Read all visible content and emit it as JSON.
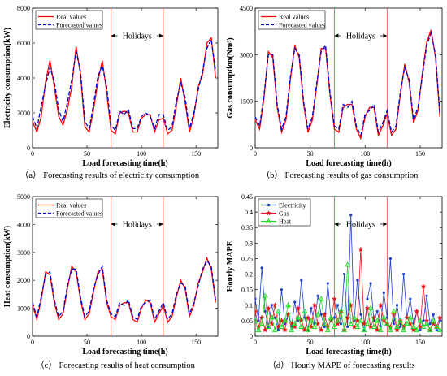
{
  "colors": {
    "real": "#ff0000",
    "forecast": "#0000cc",
    "electricity": "#1f3fd0",
    "gas": "#e8141e",
    "heat": "#22dd22",
    "holiday_line": "#e0584a"
  },
  "chart_data": [
    {
      "id": "a",
      "type": "line",
      "caption": "（a） Forecasting results of electricity consumption",
      "xlabel": "Load forecasting time(h)",
      "ylabel": "Electricity consumption(kW)",
      "xlim": [
        0,
        170
      ],
      "ylim": [
        0,
        8000
      ],
      "xticks": [
        0,
        50,
        100,
        150
      ],
      "yticks": [
        0,
        2000,
        4000,
        6000,
        8000
      ],
      "holiday_range": [
        72,
        120
      ],
      "holiday_label": "Holidays",
      "legend_position": "top-left",
      "series": [
        {
          "name": "Real values",
          "style": "solid",
          "x": [
            0,
            4,
            8,
            12,
            16,
            20,
            24,
            28,
            32,
            36,
            40,
            44,
            48,
            52,
            56,
            60,
            64,
            68,
            72,
            76,
            80,
            84,
            88,
            92,
            96,
            100,
            104,
            108,
            112,
            116,
            120,
            124,
            128,
            132,
            136,
            140,
            144,
            148,
            152,
            156,
            160,
            164,
            168
          ],
          "y": [
            1500,
            900,
            1800,
            3800,
            5000,
            3500,
            1800,
            1300,
            2200,
            3500,
            5800,
            4200,
            1200,
            900,
            2200,
            3800,
            5000,
            3200,
            1000,
            800,
            2000,
            2100,
            2000,
            900,
            900,
            1700,
            1900,
            1900,
            900,
            1600,
            1700,
            800,
            1000,
            2400,
            4000,
            2600,
            900,
            1800,
            3500,
            4200,
            6000,
            6300,
            4000
          ]
        },
        {
          "name": "Forecasted values",
          "style": "dashed",
          "x": [
            0,
            4,
            8,
            12,
            16,
            20,
            24,
            28,
            32,
            36,
            40,
            44,
            48,
            52,
            56,
            60,
            64,
            68,
            72,
            76,
            80,
            84,
            88,
            92,
            96,
            100,
            104,
            108,
            112,
            116,
            120,
            124,
            128,
            132,
            136,
            140,
            144,
            148,
            152,
            156,
            160,
            164,
            168
          ],
          "y": [
            1800,
            1100,
            2400,
            3600,
            4600,
            3800,
            2200,
            1500,
            2600,
            3900,
            5500,
            4400,
            1500,
            1100,
            2500,
            4100,
            4700,
            3500,
            1300,
            1000,
            2100,
            1900,
            2200,
            1100,
            1100,
            1800,
            2000,
            1800,
            1100,
            1900,
            1900,
            1000,
            1200,
            2700,
            3700,
            2900,
            1100,
            2000,
            3300,
            4400,
            5700,
            6200,
            4400
          ]
        }
      ]
    },
    {
      "id": "b",
      "type": "line",
      "caption": "（b） Forecasting results of gas consumption",
      "xlabel": "Load forecasting time(h)",
      "ylabel": "Gas consumption(Nm³)",
      "xlim": [
        0,
        170
      ],
      "ylim": [
        0,
        4500
      ],
      "xticks": [
        0,
        50,
        100,
        150
      ],
      "yticks": [
        0,
        1500,
        3000,
        4500
      ],
      "holiday_range": [
        72,
        120
      ],
      "holiday_label": "Holidays",
      "legend_position": "top-left",
      "series": [
        {
          "name": "Real values",
          "style": "solid",
          "x": [
            0,
            4,
            8,
            12,
            16,
            20,
            24,
            28,
            32,
            36,
            40,
            44,
            48,
            52,
            56,
            60,
            64,
            68,
            72,
            76,
            80,
            84,
            88,
            92,
            96,
            100,
            104,
            108,
            112,
            116,
            120,
            124,
            128,
            132,
            136,
            140,
            144,
            148,
            152,
            156,
            160,
            164,
            168
          ],
          "y": [
            900,
            600,
            1600,
            3100,
            2900,
            1300,
            500,
            900,
            2200,
            3300,
            2900,
            1400,
            500,
            900,
            2000,
            3200,
            3200,
            1700,
            600,
            500,
            1300,
            1400,
            1400,
            600,
            300,
            1000,
            1300,
            1300,
            400,
            700,
            1100,
            400,
            600,
            1700,
            2700,
            2100,
            800,
            1200,
            2400,
            3400,
            3800,
            2900,
            1000
          ]
        },
        {
          "name": "Forecasted values",
          "style": "dashed",
          "x": [
            0,
            4,
            8,
            12,
            16,
            20,
            24,
            28,
            32,
            36,
            40,
            44,
            48,
            52,
            56,
            60,
            64,
            68,
            72,
            76,
            80,
            84,
            88,
            92,
            96,
            100,
            104,
            108,
            112,
            116,
            120,
            124,
            128,
            132,
            136,
            140,
            144,
            148,
            152,
            156,
            160,
            164,
            168
          ],
          "y": [
            1000,
            700,
            1700,
            3000,
            3000,
            1400,
            600,
            1000,
            2300,
            3200,
            3000,
            1500,
            600,
            1000,
            2100,
            3100,
            3300,
            1800,
            700,
            600,
            1400,
            1300,
            1500,
            700,
            400,
            1100,
            1200,
            1400,
            500,
            800,
            1200,
            500,
            700,
            1800,
            2600,
            2200,
            900,
            1300,
            2300,
            3300,
            3700,
            3000,
            1100
          ]
        }
      ]
    },
    {
      "id": "c",
      "type": "line",
      "caption": "（c） Forecasting results of heat consumption",
      "xlabel": "Load forecasting time(h)",
      "ylabel": "Heat consumption(kW)",
      "xlim": [
        0,
        170
      ],
      "ylim": [
        0,
        5000
      ],
      "xticks": [
        0,
        50,
        100,
        150
      ],
      "yticks": [
        0,
        1000,
        2000,
        3000,
        4000,
        5000
      ],
      "holiday_range": [
        72,
        120
      ],
      "holiday_label": "Holidays",
      "legend_position": "top-left",
      "series": [
        {
          "name": "Real values",
          "style": "solid",
          "x": [
            0,
            4,
            8,
            12,
            16,
            20,
            24,
            28,
            32,
            36,
            40,
            44,
            48,
            52,
            56,
            60,
            64,
            68,
            72,
            76,
            80,
            84,
            88,
            92,
            96,
            100,
            104,
            108,
            112,
            116,
            120,
            124,
            128,
            132,
            136,
            140,
            144,
            148,
            152,
            156,
            160,
            164,
            168
          ],
          "y": [
            1100,
            600,
            1300,
            2300,
            2200,
            1200,
            600,
            800,
            1700,
            2500,
            2300,
            1300,
            600,
            800,
            1600,
            2300,
            2400,
            1200,
            700,
            600,
            1100,
            1200,
            1200,
            600,
            500,
            1000,
            1300,
            1200,
            500,
            800,
            1100,
            500,
            700,
            1400,
            2000,
            1700,
            700,
            1100,
            1900,
            2300,
            2800,
            2400,
            1200
          ]
        },
        {
          "name": "Forecasted values",
          "style": "dashed",
          "x": [
            0,
            4,
            8,
            12,
            16,
            20,
            24,
            28,
            32,
            36,
            40,
            44,
            48,
            52,
            56,
            60,
            64,
            68,
            72,
            76,
            80,
            84,
            88,
            92,
            96,
            100,
            104,
            108,
            112,
            116,
            120,
            124,
            128,
            132,
            136,
            140,
            144,
            148,
            152,
            156,
            160,
            164,
            168
          ],
          "y": [
            1200,
            700,
            1400,
            2200,
            2300,
            1300,
            700,
            900,
            1800,
            2400,
            2400,
            1400,
            700,
            900,
            1700,
            2200,
            2500,
            1300,
            800,
            700,
            1200,
            1100,
            1300,
            700,
            600,
            1100,
            1200,
            1300,
            600,
            900,
            1200,
            600,
            800,
            1500,
            1900,
            1800,
            800,
            1200,
            1800,
            2400,
            2700,
            2500,
            1300
          ]
        }
      ]
    },
    {
      "id": "d",
      "type": "line",
      "caption": "（d） Hourly MAPE of forecasting results",
      "xlabel": "Load forecasting time(h)",
      "ylabel": "Hourly MAPE",
      "xlim": [
        0,
        170
      ],
      "ylim": [
        0,
        0.45
      ],
      "xticks": [
        0,
        50,
        100,
        150
      ],
      "yticks": [
        0,
        0.05,
        0.1,
        0.15,
        0.2,
        0.25,
        0.3,
        0.35,
        0.4,
        0.45
      ],
      "ytick_labels": [
        "0",
        "0.05",
        "0.1",
        "0.15",
        "0.2",
        "0.25",
        "0.3",
        "0.35",
        "0.4",
        "0.45"
      ],
      "holiday_range": [
        72,
        120
      ],
      "holiday_label": "Holidays",
      "legend_position": "top-left",
      "markers": true,
      "series": [
        {
          "name": "Electricity",
          "marker": "dot",
          "x": [
            0,
            3,
            6,
            9,
            12,
            15,
            18,
            21,
            24,
            27,
            30,
            33,
            36,
            39,
            42,
            45,
            48,
            51,
            54,
            57,
            60,
            63,
            66,
            69,
            72,
            75,
            78,
            81,
            84,
            87,
            90,
            93,
            96,
            99,
            102,
            105,
            108,
            111,
            114,
            117,
            120,
            123,
            126,
            129,
            132,
            135,
            138,
            141,
            144,
            147,
            150,
            153,
            156,
            159,
            162,
            165,
            168
          ],
          "y": [
            0.12,
            0.05,
            0.22,
            0.08,
            0.03,
            0.1,
            0.06,
            0.02,
            0.15,
            0.04,
            0.07,
            0.03,
            0.11,
            0.05,
            0.18,
            0.06,
            0.02,
            0.09,
            0.04,
            0.13,
            0.07,
            0.03,
            0.17,
            0.05,
            0.06,
            0.1,
            0.04,
            0.2,
            0.03,
            0.39,
            0.05,
            0.18,
            0.07,
            0.02,
            0.12,
            0.17,
            0.05,
            0.08,
            0.03,
            0.14,
            0.06,
            0.25,
            0.04,
            0.1,
            0.03,
            0.2,
            0.06,
            0.12,
            0.04,
            0.08,
            0.02,
            0.05,
            0.13,
            0.04,
            0.07,
            0.02,
            0.05
          ]
        },
        {
          "name": "Gas",
          "marker": "star",
          "x": [
            0,
            3,
            6,
            9,
            12,
            15,
            18,
            21,
            24,
            27,
            30,
            33,
            36,
            39,
            42,
            45,
            48,
            51,
            54,
            57,
            60,
            63,
            66,
            69,
            72,
            75,
            78,
            81,
            84,
            87,
            90,
            93,
            96,
            99,
            102,
            105,
            108,
            111,
            114,
            117,
            120,
            123,
            126,
            129,
            132,
            135,
            138,
            141,
            144,
            147,
            150,
            153,
            156,
            159,
            162,
            165,
            168
          ],
          "y": [
            0.08,
            0.03,
            0.06,
            0.02,
            0.09,
            0.04,
            0.1,
            0.03,
            0.05,
            0.02,
            0.07,
            0.04,
            0.03,
            0.09,
            0.05,
            0.02,
            0.06,
            0.03,
            0.1,
            0.04,
            0.02,
            0.07,
            0.03,
            0.05,
            0.12,
            0.04,
            0.08,
            0.02,
            0.06,
            0.1,
            0.03,
            0.05,
            0.28,
            0.04,
            0.09,
            0.03,
            0.06,
            0.02,
            0.1,
            0.05,
            0.04,
            0.03,
            0.07,
            0.02,
            0.05,
            0.03,
            0.06,
            0.04,
            0.02,
            0.08,
            0.03,
            0.16,
            0.05,
            0.02,
            0.04,
            0.03,
            0.06
          ]
        },
        {
          "name": "Heat",
          "marker": "triangle",
          "x": [
            0,
            3,
            6,
            9,
            12,
            15,
            18,
            21,
            24,
            27,
            30,
            33,
            36,
            39,
            42,
            45,
            48,
            51,
            54,
            57,
            60,
            63,
            66,
            69,
            72,
            75,
            78,
            81,
            84,
            87,
            90,
            93,
            96,
            99,
            102,
            105,
            108,
            111,
            114,
            117,
            120,
            123,
            126,
            129,
            132,
            135,
            138,
            141,
            144,
            147,
            150,
            153,
            156,
            159,
            162,
            165,
            168
          ],
          "y": [
            0.05,
            0.02,
            0.04,
            0.13,
            0.03,
            0.06,
            0.02,
            0.08,
            0.03,
            0.05,
            0.1,
            0.02,
            0.04,
            0.06,
            0.03,
            0.08,
            0.02,
            0.05,
            0.03,
            0.07,
            0.12,
            0.04,
            0.02,
            0.06,
            0.03,
            0.05,
            0.08,
            0.02,
            0.23,
            0.04,
            0.06,
            0.03,
            0.05,
            0.02,
            0.04,
            0.09,
            0.03,
            0.05,
            0.02,
            0.06,
            0.04,
            0.02,
            0.08,
            0.03,
            0.05,
            0.02,
            0.04,
            0.06,
            0.03,
            0.02,
            0.05,
            0.03,
            0.04,
            0.02,
            0.05,
            0.03,
            0.02
          ]
        }
      ]
    }
  ]
}
